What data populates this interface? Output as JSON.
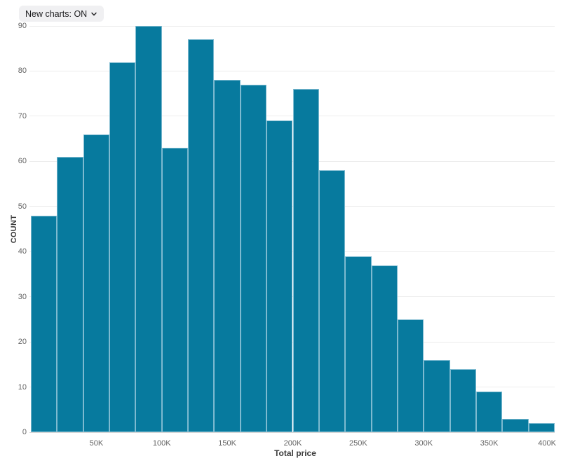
{
  "controls": {
    "new_charts_label": "New charts: ON"
  },
  "chart_data": {
    "type": "bar",
    "subtype": "histogram",
    "title": "",
    "xlabel": "Total price",
    "ylabel": "COUNT",
    "xlim": [
      0,
      400000
    ],
    "ylim": [
      0,
      90
    ],
    "bin_start": 0,
    "bin_width": 20000,
    "bins": [
      "0-20K",
      "20K-40K",
      "40K-60K",
      "60K-80K",
      "80K-100K",
      "100K-120K",
      "120K-140K",
      "140K-160K",
      "160K-180K",
      "180K-200K",
      "200K-220K",
      "220K-240K",
      "240K-260K",
      "260K-280K",
      "280K-300K",
      "300K-320K",
      "320K-340K",
      "340K-360K",
      "360K-380K",
      "380K-400K"
    ],
    "values": [
      48,
      61,
      66,
      82,
      90,
      63,
      87,
      78,
      77,
      69,
      76,
      58,
      39,
      37,
      25,
      16,
      14,
      9,
      3,
      2
    ],
    "yticks": [
      0,
      10,
      20,
      30,
      40,
      50,
      60,
      70,
      80,
      90
    ],
    "xticks": [
      {
        "value": 50000,
        "label": "50K"
      },
      {
        "value": 100000,
        "label": "100K"
      },
      {
        "value": 150000,
        "label": "150K"
      },
      {
        "value": 200000,
        "label": "200K"
      },
      {
        "value": 250000,
        "label": "250K"
      },
      {
        "value": 300000,
        "label": "300K"
      },
      {
        "value": 350000,
        "label": "350K"
      },
      {
        "value": 400000,
        "label": "400K"
      }
    ],
    "grid": "horizontal",
    "legend": "none",
    "colors": {
      "bar_fill": "#077a9e",
      "bar_stroke": "#7dbad0",
      "gridline": "#ececec",
      "axis_line": "#d6d6d6",
      "tick_label": "#646464",
      "axis_title": "#3c3c3c"
    }
  }
}
